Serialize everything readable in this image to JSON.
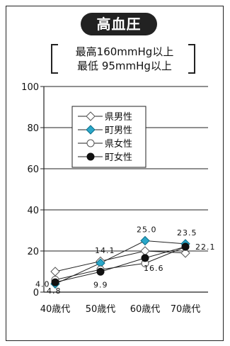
{
  "header": {
    "title": "高血圧",
    "criteria_line1": "最高160mmHg以上",
    "criteria_line2": "最低 95mmHg以上"
  },
  "chart_data": {
    "type": "line",
    "title": "高血圧",
    "categories": [
      "40歳代",
      "50歳代",
      "60歳代",
      "70歳代"
    ],
    "ylim": [
      0,
      100
    ],
    "yticks": [
      "0",
      "20",
      "40",
      "60",
      "80",
      "100"
    ],
    "grid": true,
    "legend_position": "top-left",
    "series": [
      {
        "name": "県男性",
        "values": [
          10,
          15,
          20,
          19
        ],
        "marker": "open-diamond",
        "color": "#555555"
      },
      {
        "name": "町男性",
        "values": [
          4.0,
          14.1,
          25.0,
          23.5
        ],
        "marker": "filled-diamond",
        "color": "#2aa7c9"
      },
      {
        "name": "県女性",
        "values": [
          6,
          11,
          14,
          22
        ],
        "marker": "open-circle",
        "color": "#555555"
      },
      {
        "name": "町女性",
        "values": [
          4.8,
          9.9,
          16.6,
          22.1
        ],
        "marker": "filled-circle",
        "color": "#111111"
      }
    ],
    "data_labels": [
      {
        "text": "4.0",
        "series": 1,
        "index": 0
      },
      {
        "text": "4.8",
        "series": 3,
        "index": 0
      },
      {
        "text": "14.1",
        "series": 1,
        "index": 1
      },
      {
        "text": "9.9",
        "series": 3,
        "index": 1
      },
      {
        "text": "25.0",
        "series": 1,
        "index": 2
      },
      {
        "text": "16.6",
        "series": 3,
        "index": 2
      },
      {
        "text": "23.5",
        "series": 1,
        "index": 3
      },
      {
        "text": "22.1",
        "series": 3,
        "index": 3
      }
    ]
  }
}
